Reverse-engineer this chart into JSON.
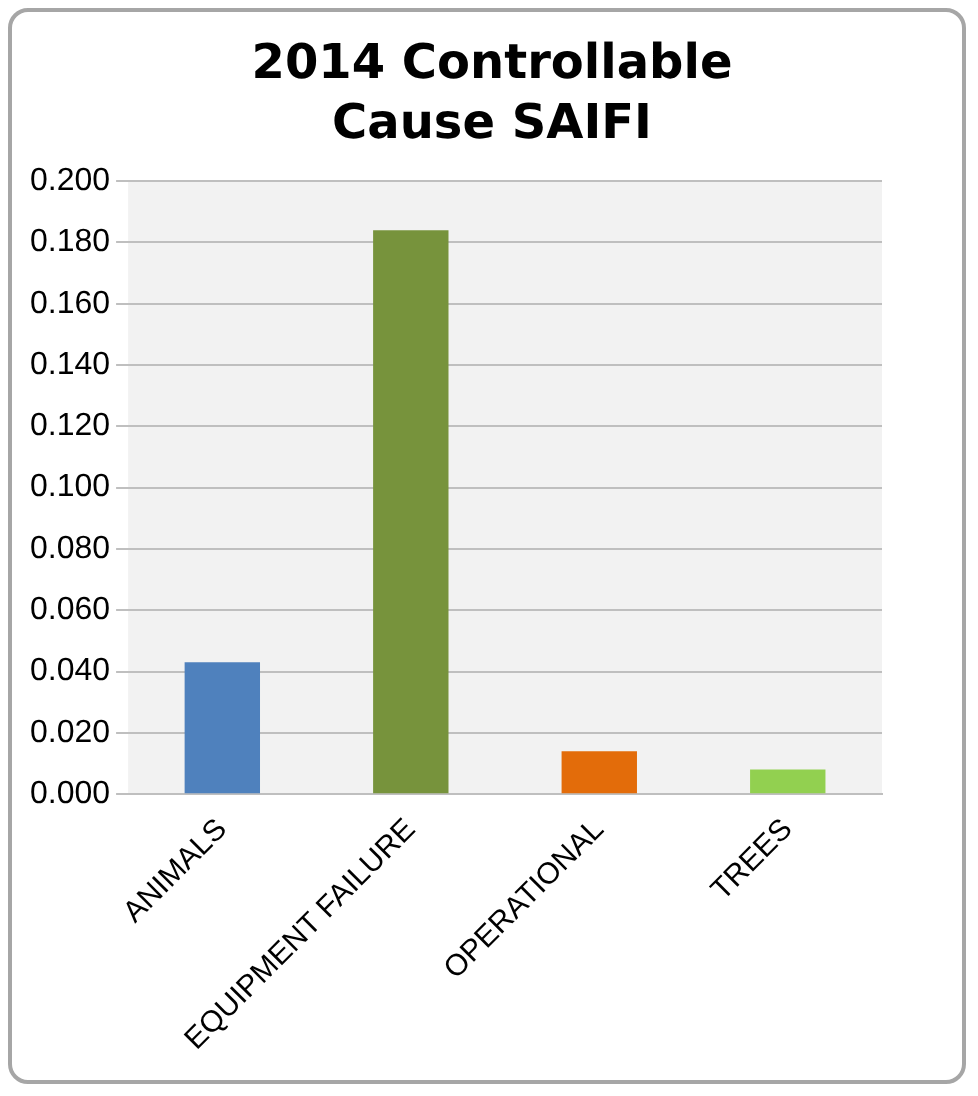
{
  "chart_data": {
    "type": "bar",
    "title": "2014 Controllable Cause SAIFI",
    "categories": [
      "ANIMALS",
      "EQUIPMENT FAILURE",
      "OPERATIONAL",
      "TREES"
    ],
    "values": [
      0.043,
      0.184,
      0.014,
      0.008
    ],
    "colors": [
      "#4f81bd",
      "#77933c",
      "#e36c0a",
      "#92d050"
    ],
    "ylim": [
      0,
      0.2
    ],
    "yticks": [
      {
        "value": 0,
        "label": "0.000"
      },
      {
        "value": 0.02,
        "label": "0.020"
      },
      {
        "value": 0.04,
        "label": "0.040"
      },
      {
        "value": 0.06,
        "label": "0.060"
      },
      {
        "value": 0.08,
        "label": "0.080"
      },
      {
        "value": 0.1,
        "label": "0.100"
      },
      {
        "value": 0.12,
        "label": "0.120"
      },
      {
        "value": 0.14,
        "label": "0.140"
      },
      {
        "value": 0.16,
        "label": "0.160"
      },
      {
        "value": 0.18,
        "label": "0.180"
      },
      {
        "value": 0.2,
        "label": "0.200"
      }
    ],
    "grid": "y"
  }
}
